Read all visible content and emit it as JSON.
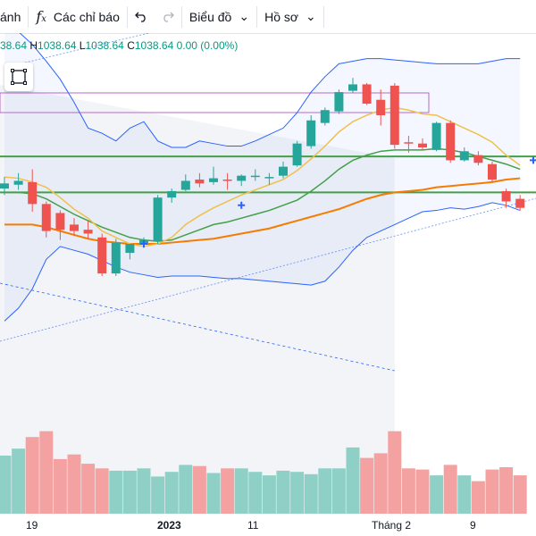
{
  "toolbar": {
    "partial_left": "ánh",
    "indicators_icon": "fx-icon",
    "indicators": "Các chỉ báo",
    "undo_icon": "undo-icon",
    "redo_icon": "redo-icon",
    "chart_menu": "Biểu đồ",
    "profile_menu": "Hồ sơ",
    "chevron": "⌄"
  },
  "legend": {
    "o_value": "38.64",
    "h_label": "H",
    "h_value": "1038.64",
    "l_label": "L",
    "l_value": "1038.64",
    "c_label": "C",
    "c_value": "1038.64",
    "change": "0.00 (0.00%)"
  },
  "xaxis": {
    "labels": [
      "19",
      "2023",
      "11",
      "Tháng 2",
      "9"
    ]
  },
  "colors": {
    "up": "#26a69a",
    "down": "#ef5350",
    "volume_up": "#8fd0c6",
    "volume_down": "#f4a1a1",
    "bollinger": "#2962ff",
    "ma_short": "#f0c04c",
    "ma_mid": "#43a047",
    "ma_long": "#f57c00",
    "hline": "#43a047"
  },
  "chart_data": {
    "type": "candlestick",
    "candles": [
      {
        "o": 1013,
        "h": 1022,
        "l": 1008,
        "c": 1017
      },
      {
        "o": 1016,
        "h": 1025,
        "l": 1012,
        "c": 1019
      },
      {
        "o": 1018,
        "h": 1028,
        "l": 995,
        "c": 1001
      },
      {
        "o": 1001,
        "h": 1003,
        "l": 975,
        "c": 980
      },
      {
        "o": 994,
        "h": 996,
        "l": 973,
        "c": 981
      },
      {
        "o": 985,
        "h": 990,
        "l": 976,
        "c": 980
      },
      {
        "o": 981,
        "h": 988,
        "l": 974,
        "c": 978
      },
      {
        "o": 975,
        "h": 978,
        "l": 945,
        "c": 947
      },
      {
        "o": 947,
        "h": 974,
        "l": 945,
        "c": 971
      },
      {
        "o": 963,
        "h": 970,
        "l": 958,
        "c": 970
      },
      {
        "o": 970,
        "h": 975,
        "l": 967,
        "c": 973
      },
      {
        "o": 972,
        "h": 1008,
        "l": 970,
        "c": 1006
      },
      {
        "o": 1006,
        "h": 1013,
        "l": 1002,
        "c": 1011
      },
      {
        "o": 1012,
        "h": 1024,
        "l": 1011,
        "c": 1019
      },
      {
        "o": 1020,
        "h": 1025,
        "l": 1014,
        "c": 1017
      },
      {
        "o": 1018,
        "h": 1030,
        "l": 1016,
        "c": 1021
      },
      {
        "o": 1020,
        "h": 1025,
        "l": 1012,
        "c": 1019
      },
      {
        "o": 1019,
        "h": 1024,
        "l": 1015,
        "c": 1023
      },
      {
        "o": 1023,
        "h": 1028,
        "l": 1019,
        "c": 1023
      },
      {
        "o": 1022,
        "h": 1025,
        "l": 1016,
        "c": 1022
      },
      {
        "o": 1023,
        "h": 1034,
        "l": 1021,
        "c": 1030
      },
      {
        "o": 1031,
        "h": 1050,
        "l": 1030,
        "c": 1048
      },
      {
        "o": 1046,
        "h": 1070,
        "l": 1044,
        "c": 1066
      },
      {
        "o": 1064,
        "h": 1076,
        "l": 1062,
        "c": 1074
      },
      {
        "o": 1073,
        "h": 1090,
        "l": 1071,
        "c": 1088
      },
      {
        "o": 1089,
        "h": 1099,
        "l": 1087,
        "c": 1094
      },
      {
        "o": 1094,
        "h": 1095,
        "l": 1078,
        "c": 1079
      },
      {
        "o": 1082,
        "h": 1090,
        "l": 1062,
        "c": 1070
      },
      {
        "o": 1093,
        "h": 1095,
        "l": 1044,
        "c": 1047
      },
      {
        "o": 1049,
        "h": 1054,
        "l": 1041,
        "c": 1048
      },
      {
        "o": 1048,
        "h": 1052,
        "l": 1043,
        "c": 1045
      },
      {
        "o": 1043,
        "h": 1065,
        "l": 1042,
        "c": 1064
      },
      {
        "o": 1064,
        "h": 1066,
        "l": 1033,
        "c": 1035
      },
      {
        "o": 1035,
        "h": 1045,
        "l": 1034,
        "c": 1042
      },
      {
        "o": 1039,
        "h": 1042,
        "l": 1031,
        "c": 1033
      },
      {
        "o": 1032,
        "h": 1034,
        "l": 1018,
        "c": 1020
      },
      {
        "o": 1011,
        "h": 1013,
        "l": 998,
        "c": 1003
      },
      {
        "o": 1005,
        "h": 1008,
        "l": 996,
        "c": 998
      }
    ],
    "volume": [
      5.0,
      5.6,
      6.6,
      7.1,
      4.7,
      5.1,
      4.3,
      3.9,
      3.7,
      3.7,
      3.9,
      3.2,
      3.6,
      4.2,
      4.1,
      3.5,
      3.9,
      3.9,
      3.6,
      3.3,
      3.7,
      3.6,
      3.4,
      3.9,
      3.9,
      5.7,
      4.8,
      5.2,
      7.1,
      3.9,
      3.8,
      3.3,
      4.2,
      3.3,
      2.8,
      3.8,
      4.0,
      3.3
    ],
    "bollinger_upper": [
      1140,
      1135,
      1125,
      1112,
      1098,
      1080,
      1060,
      1056,
      1050,
      1060,
      1065,
      1050,
      1045,
      1045,
      1050,
      1048,
      1046,
      1046,
      1050,
      1055,
      1060,
      1072,
      1088,
      1100,
      1110,
      1112,
      1114,
      1114,
      1113,
      1112,
      1111,
      1110,
      1110,
      1110,
      1110,
      1112,
      1114,
      1114
    ],
    "bollinger_lower": [
      910,
      920,
      935,
      958,
      968,
      965,
      962,
      957,
      952,
      948,
      946,
      944,
      945,
      945,
      945,
      944,
      943,
      943,
      942,
      941,
      940,
      939,
      938,
      941,
      952,
      965,
      975,
      980,
      985,
      990,
      995,
      996,
      998,
      997,
      999,
      1002,
      1000,
      996
    ],
    "ma_short": [
      1022,
      1021,
      1018,
      1014,
      1006,
      997,
      990,
      980,
      975,
      970,
      968,
      970,
      975,
      985,
      992,
      998,
      1003,
      1008,
      1012,
      1016,
      1020,
      1027,
      1036,
      1046,
      1057,
      1065,
      1070,
      1074,
      1076,
      1074,
      1071,
      1070,
      1065,
      1060,
      1055,
      1049,
      1039,
      1031
    ],
    "ma_mid": [
      1010,
      1010,
      1009,
      1005,
      999,
      993,
      988,
      983,
      979,
      975,
      973,
      972,
      973,
      977,
      981,
      985,
      987,
      990,
      993,
      996,
      1000,
      1004,
      1011,
      1019,
      1028,
      1035,
      1039,
      1042,
      1043,
      1043,
      1043,
      1044,
      1043,
      1041,
      1038,
      1035,
      1032,
      1028
    ],
    "ma_long": [
      985,
      985,
      985,
      983,
      980,
      977,
      974,
      972,
      971,
      970,
      970,
      970,
      971,
      972,
      973,
      974,
      976,
      978,
      980,
      982,
      985,
      988,
      991,
      994,
      997,
      1001,
      1005,
      1008,
      1010,
      1011,
      1012,
      1014,
      1015,
      1016,
      1017,
      1018,
      1020,
      1021
    ],
    "hlines": [
      1038,
      1010
    ],
    "ylim": [
      870,
      1120
    ],
    "x_labels": [
      "19",
      "2023",
      "11",
      "Tháng 2",
      "9"
    ]
  }
}
